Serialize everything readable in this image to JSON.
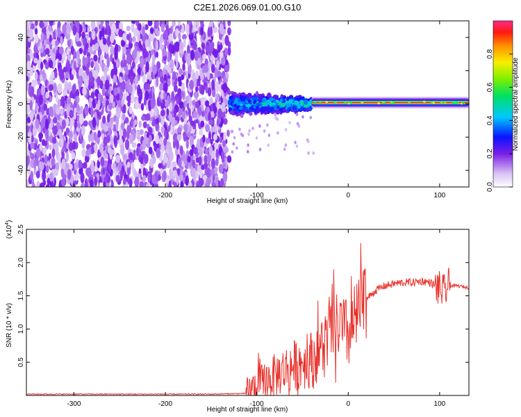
{
  "title": "C2E1.2026.069.01.00.G10",
  "chart_data": [
    {
      "type": "heatmap",
      "xlabel": "Height of straight line (km)",
      "ylabel": "Frequency (Hz)",
      "xlim": [
        -352,
        132
      ],
      "ylim": [
        -50,
        50
      ],
      "xticks": [
        -300,
        -200,
        -100,
        0,
        100
      ],
      "yticks": [
        -40,
        -20,
        0,
        20,
        40
      ],
      "colorbar": {
        "label": "Normalized spectral amplitude",
        "range": [
          0,
          1
        ],
        "ticks": [
          0.0,
          0.2,
          0.4,
          0.6,
          0.8
        ],
        "tick_labels": [
          "0.0",
          "0.2",
          "0.4",
          "0.6",
          "0.8"
        ],
        "position": "right"
      },
      "regions": [
        {
          "x": [
            -352,
            -130
          ],
          "f": [
            -50,
            50
          ],
          "amplitude": [
            0.05,
            0.15
          ],
          "pattern": "scattered noise"
        },
        {
          "x": [
            -130,
            -40
          ],
          "f": [
            -7,
            8
          ],
          "amplitude": [
            0.1,
            0.45
          ],
          "pattern": "broad band"
        },
        {
          "x": [
            -40,
            132
          ],
          "f": [
            -2,
            3
          ],
          "amplitude": [
            0.7,
            1.0
          ],
          "pattern": "narrow line near 0 Hz"
        }
      ],
      "colors": {
        "low": "#dcc8f5",
        "mid": "#6a2ee0",
        "high": "#ff0000"
      }
    },
    {
      "type": "line",
      "xlabel": "Height of straight line (km)",
      "ylabel": "SNR (10 * v/v)",
      "y_multiplier_label": "(x10",
      "y_multiplier_exp": "4",
      "y_multiplier_close": ")",
      "xlim": [
        -352,
        132
      ],
      "ylim": [
        0,
        2.5
      ],
      "xticks": [
        -300,
        -200,
        -100,
        0,
        100
      ],
      "yticks": [
        0.5,
        1.0,
        1.5,
        2.0,
        2.5
      ],
      "ytick_labels": [
        "0.5",
        "1.0",
        "1.5",
        "2.0",
        "2.5"
      ],
      "color": "#e8302a",
      "series": [
        {
          "x": [
            -352,
            -300,
            -250,
            -200,
            -150,
            -110,
            -100,
            -90,
            -80,
            -70,
            -60,
            -50,
            -40,
            -30,
            -20,
            -10,
            0,
            10,
            20,
            30,
            40,
            50,
            60,
            70,
            80,
            90,
            95,
            100,
            105,
            110,
            120,
            132
          ],
          "values": [
            0.02,
            0.02,
            0.02,
            0.02,
            0.02,
            0.03,
            0.15,
            0.22,
            0.3,
            0.38,
            0.45,
            0.5,
            0.55,
            0.7,
            0.95,
            1.05,
            0.9,
            1.2,
            1.45,
            1.58,
            1.65,
            1.68,
            1.7,
            1.7,
            1.72,
            1.7,
            1.65,
            1.6,
            1.55,
            1.65,
            1.65,
            1.62
          ]
        }
      ]
    }
  ]
}
